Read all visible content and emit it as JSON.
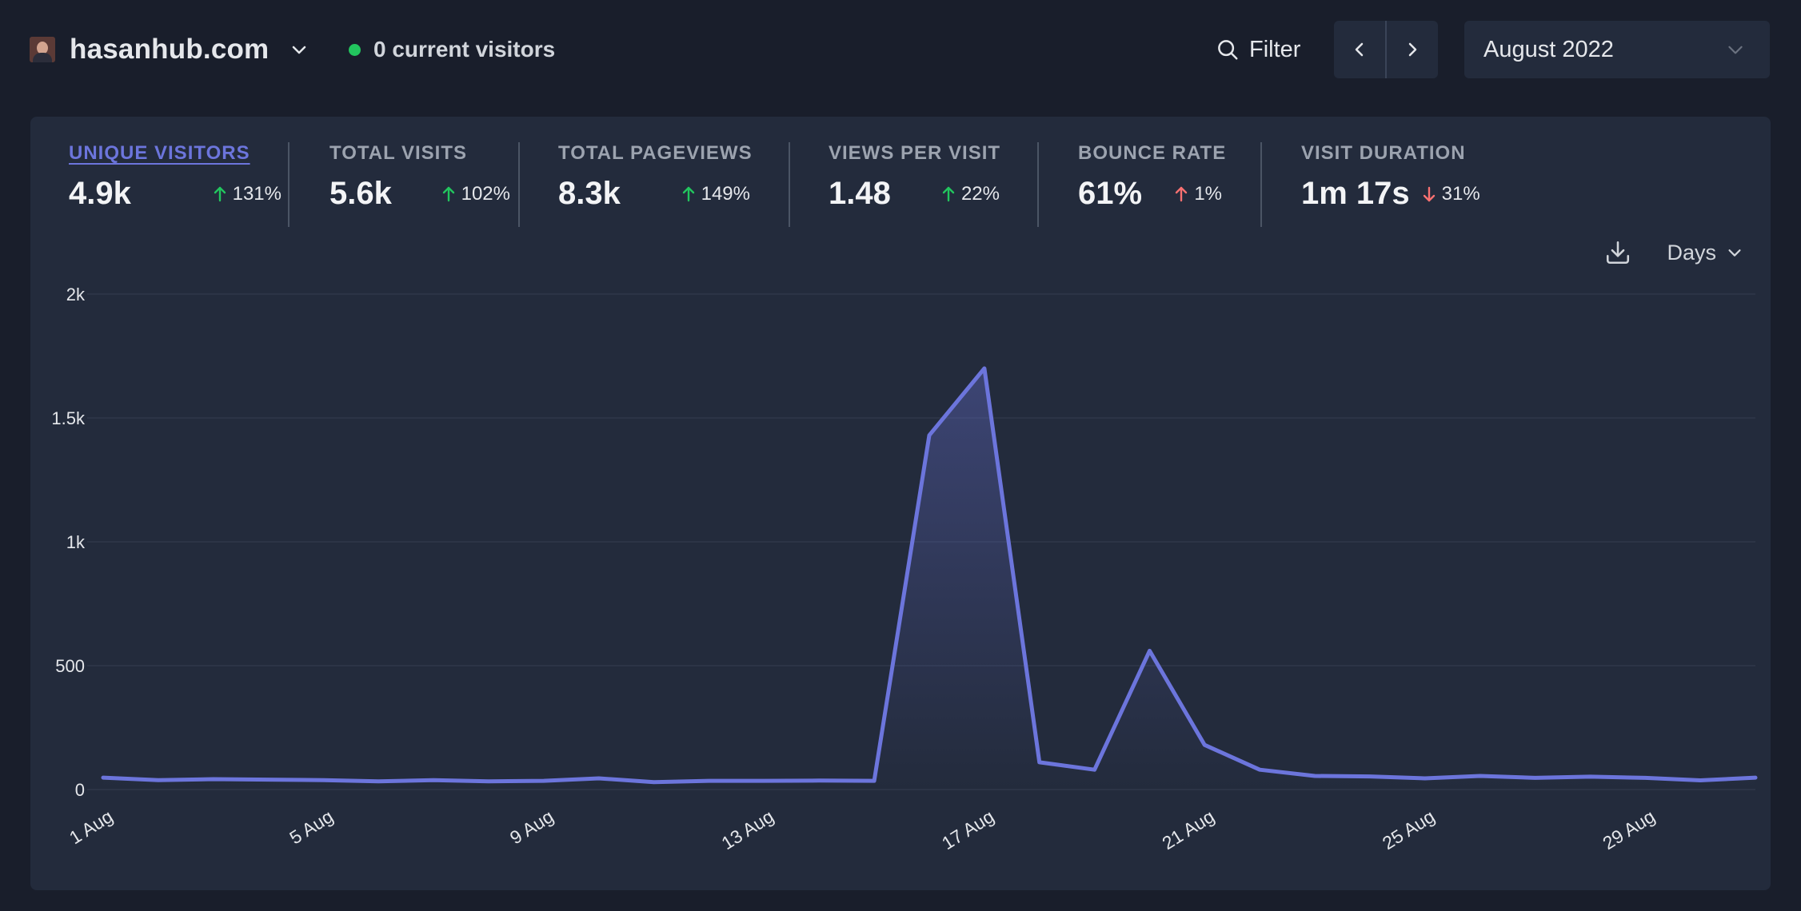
{
  "site": {
    "name": "hasanhub.com",
    "favicon_icon": "site-favicon"
  },
  "realtime": {
    "label": "0 current visitors",
    "dot_color": "#22c55e"
  },
  "toolbar": {
    "filter_label": "Filter",
    "period_label": "August 2022"
  },
  "metrics": [
    {
      "label": "UNIQUE VISITORS",
      "value": "4.9k",
      "change": "131%",
      "direction": "up",
      "active": true
    },
    {
      "label": "TOTAL VISITS",
      "value": "5.6k",
      "change": "102%",
      "direction": "up",
      "active": false
    },
    {
      "label": "TOTAL PAGEVIEWS",
      "value": "8.3k",
      "change": "149%",
      "direction": "up",
      "active": false
    },
    {
      "label": "VIEWS PER VISIT",
      "value": "1.48",
      "change": "22%",
      "direction": "up",
      "active": false
    },
    {
      "label": "BOUNCE RATE",
      "value": "61%",
      "change": "1%",
      "direction": "up-bad",
      "active": false
    },
    {
      "label": "VISIT DURATION",
      "value": "1m 17s",
      "change": "31%",
      "direction": "down-bad",
      "active": false
    }
  ],
  "chart_controls": {
    "interval_label": "Days",
    "download_icon": "download-icon"
  },
  "colors": {
    "line": "#6c75dc",
    "good": "#22c55e",
    "bad": "#f87171",
    "accent": "#6c75dc"
  },
  "chart_data": {
    "type": "area",
    "ylim": [
      0,
      2000
    ],
    "y_ticks": [
      0,
      500,
      1000,
      1500,
      2000
    ],
    "y_tick_labels": [
      "0",
      "500",
      "1k",
      "1.5k",
      "2k"
    ],
    "x_ticks": [
      1,
      5,
      9,
      13,
      17,
      21,
      25,
      29
    ],
    "x_tick_labels": [
      "1 Aug",
      "5 Aug",
      "9 Aug",
      "13 Aug",
      "17 Aug",
      "21 Aug",
      "25 Aug",
      "29 Aug"
    ],
    "grid": true,
    "legend": "none",
    "series": [
      {
        "x": [
          1,
          2,
          3,
          4,
          5,
          6,
          7,
          8,
          9,
          10,
          11,
          12,
          13,
          14,
          15,
          16,
          17,
          18,
          19,
          20,
          21,
          22,
          23,
          24,
          25,
          26,
          27,
          28,
          29,
          30,
          31
        ],
        "values": [
          48,
          38,
          42,
          40,
          38,
          33,
          38,
          33,
          35,
          45,
          30,
          35,
          35,
          36,
          35,
          1430,
          1700,
          110,
          80,
          560,
          180,
          80,
          55,
          53,
          45,
          55,
          47,
          52,
          47,
          37,
          48
        ]
      }
    ]
  }
}
